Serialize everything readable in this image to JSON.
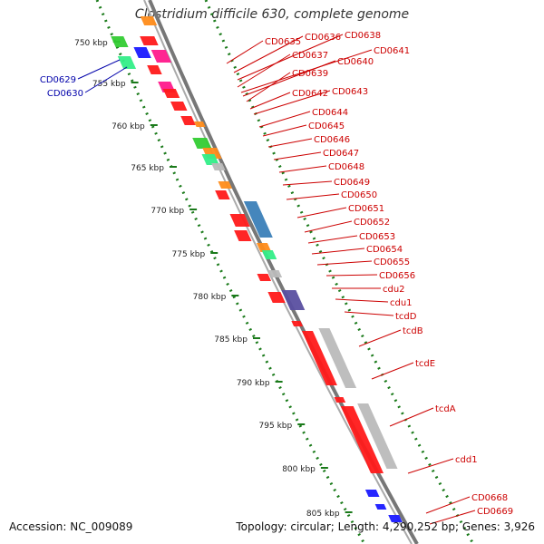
{
  "title": "Clostridium difficile 630, complete genome",
  "footer": {
    "accession": "Accession: NC_009089",
    "summary": "Topology: circular; Length: 4,290,252 bp; Genes: 3,926"
  },
  "colors": {
    "red_gene": "#ff1a1a",
    "blue_gene": "#1a1aff",
    "label_red": "#cc0000",
    "label_blue": "#0000aa",
    "tick_green": "#1a7a1a",
    "backbone": "#777777"
  },
  "ticks": [
    "750 kbp",
    "755 kbp",
    "760 kbp",
    "765 kbp",
    "770 kbp",
    "775 kbp",
    "780 kbp",
    "785 kbp",
    "790 kbp",
    "795 kbp",
    "800 kbp",
    "805 kbp"
  ],
  "left_labels": [
    "CD0629",
    "CD0630"
  ],
  "right_labels": [
    "CD0635",
    "CD0636",
    "CD0638",
    "CD0637",
    "CD0641",
    "CD0640",
    "CD0639",
    "CD0642",
    "CD0643",
    "CD0644",
    "CD0645",
    "CD0646",
    "CD0647",
    "CD0648",
    "CD0649",
    "CD0650",
    "CD0651",
    "CD0652",
    "CD0653",
    "CD0654",
    "CD0655",
    "CD0656",
    "cdu2",
    "cdu1",
    "tcdD",
    "tcdB",
    "tcdE",
    "tcdA",
    "cdd1",
    "CD0668",
    "CD0669"
  ]
}
